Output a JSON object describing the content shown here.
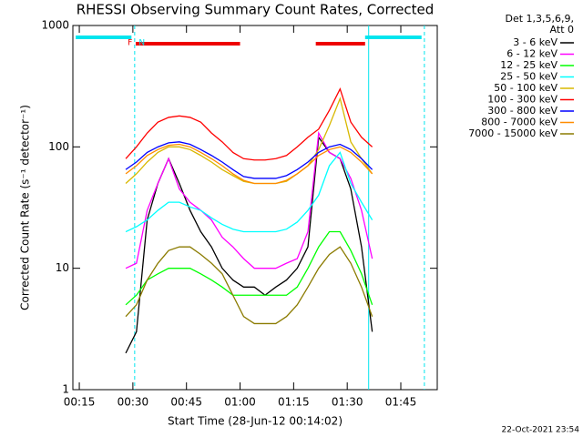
{
  "chart_data": {
    "type": "line",
    "title": "RHESSI Observing Summary Count Rates, Corrected",
    "x_label": "Start Time (28-Jun-12 00:14:02)",
    "y_label": "Corrected Count Rate (s⁻¹ detector⁻¹)",
    "legend_header": [
      "Det 1,3,5,6,9,",
      "Att 0"
    ],
    "footer": "22-Oct-2021 23:54",
    "log_y": true,
    "xlim": [
      13.2,
      115.2
    ],
    "ylim": [
      1,
      1000
    ],
    "xticks": [
      {
        "value": 15,
        "label": "00:15"
      },
      {
        "value": 30,
        "label": "00:30"
      },
      {
        "value": 45,
        "label": "00:45"
      },
      {
        "value": 60,
        "label": "01:00"
      },
      {
        "value": 75,
        "label": "01:15"
      },
      {
        "value": 90,
        "label": "01:30"
      },
      {
        "value": 105,
        "label": "01:45"
      }
    ],
    "yticks": [
      1,
      10,
      100,
      1000
    ],
    "x": [
      28,
      31,
      34,
      37,
      40,
      43,
      46,
      49,
      52,
      55,
      58,
      61,
      64,
      67,
      70,
      73,
      76,
      79,
      82,
      85,
      88,
      91,
      94,
      97
    ],
    "series": [
      {
        "name": "3 - 6 keV",
        "color": "#000000",
        "values": [
          2,
          3,
          25,
          50,
          80,
          50,
          30,
          20,
          15,
          10,
          8,
          7,
          7,
          6,
          7,
          8,
          10,
          15,
          120,
          90,
          80,
          45,
          15,
          3
        ]
      },
      {
        "name": "6 - 12 keV",
        "color": "#ff00ff",
        "values": [
          10,
          11,
          30,
          50,
          80,
          45,
          35,
          30,
          25,
          18,
          15,
          12,
          10,
          10,
          10,
          11,
          12,
          20,
          130,
          90,
          80,
          55,
          30,
          12
        ]
      },
      {
        "name": "12 - 25 keV",
        "color": "#00ff00",
        "values": [
          5,
          6,
          8,
          9,
          10,
          10,
          10,
          9,
          8,
          7,
          6,
          6,
          6,
          6,
          6,
          6,
          7,
          10,
          15,
          20,
          20,
          14,
          9,
          5
        ]
      },
      {
        "name": "25 - 50 keV",
        "color": "#00ffff",
        "values": [
          20,
          22,
          25,
          30,
          35,
          35,
          32,
          30,
          26,
          23,
          21,
          20,
          20,
          20,
          20,
          21,
          24,
          30,
          40,
          70,
          90,
          50,
          35,
          25
        ]
      },
      {
        "name": "50 - 100 keV",
        "color": "#d8b800",
        "values": [
          50,
          60,
          75,
          90,
          100,
          100,
          95,
          85,
          75,
          65,
          58,
          52,
          50,
          50,
          50,
          52,
          60,
          70,
          95,
          150,
          250,
          110,
          80,
          60
        ]
      },
      {
        "name": "100 - 300 keV",
        "color": "#ff0000",
        "values": [
          80,
          100,
          130,
          160,
          175,
          180,
          175,
          160,
          130,
          110,
          90,
          80,
          78,
          78,
          80,
          85,
          100,
          120,
          140,
          200,
          300,
          160,
          120,
          100
        ]
      },
      {
        "name": "300 - 800 keV",
        "color": "#0000ff",
        "values": [
          65,
          75,
          90,
          100,
          108,
          110,
          105,
          95,
          85,
          75,
          65,
          57,
          55,
          55,
          55,
          58,
          65,
          75,
          90,
          100,
          105,
          95,
          80,
          65
        ]
      },
      {
        "name": "800 - 7000 keV",
        "color": "#ff8c00",
        "values": [
          60,
          70,
          85,
          95,
          103,
          105,
          100,
          90,
          80,
          70,
          60,
          53,
          50,
          50,
          50,
          53,
          60,
          70,
          85,
          95,
          100,
          90,
          75,
          60
        ]
      },
      {
        "name": "7000 - 15000 keV",
        "color": "#8b7b00",
        "values": [
          4,
          5,
          8,
          11,
          14,
          15,
          15,
          13,
          11,
          9,
          6,
          4,
          3.5,
          3.5,
          3.5,
          4,
          5,
          7,
          10,
          13,
          15,
          11,
          7,
          4
        ]
      }
    ],
    "night_bars": {
      "color": "#00e5ee",
      "spans": [
        [
          14,
          29.6
        ],
        [
          95,
          110.8
        ]
      ]
    },
    "flare_bars": {
      "color": "#ee0000",
      "spans": [
        [
          30.8,
          60
        ],
        [
          81.2,
          95
        ]
      ]
    },
    "solid_lines": {
      "color": "#00e5ee",
      "x": [
        96
      ]
    },
    "dashed_lines": {
      "color": "#00e5ee",
      "x": [
        30.5,
        111.6
      ]
    },
    "annotations": [
      {
        "text": "F",
        "x": 29.2,
        "color": "#ee0000"
      },
      {
        "text": "N",
        "x": 32.5,
        "color": "#00e5ee"
      }
    ]
  }
}
